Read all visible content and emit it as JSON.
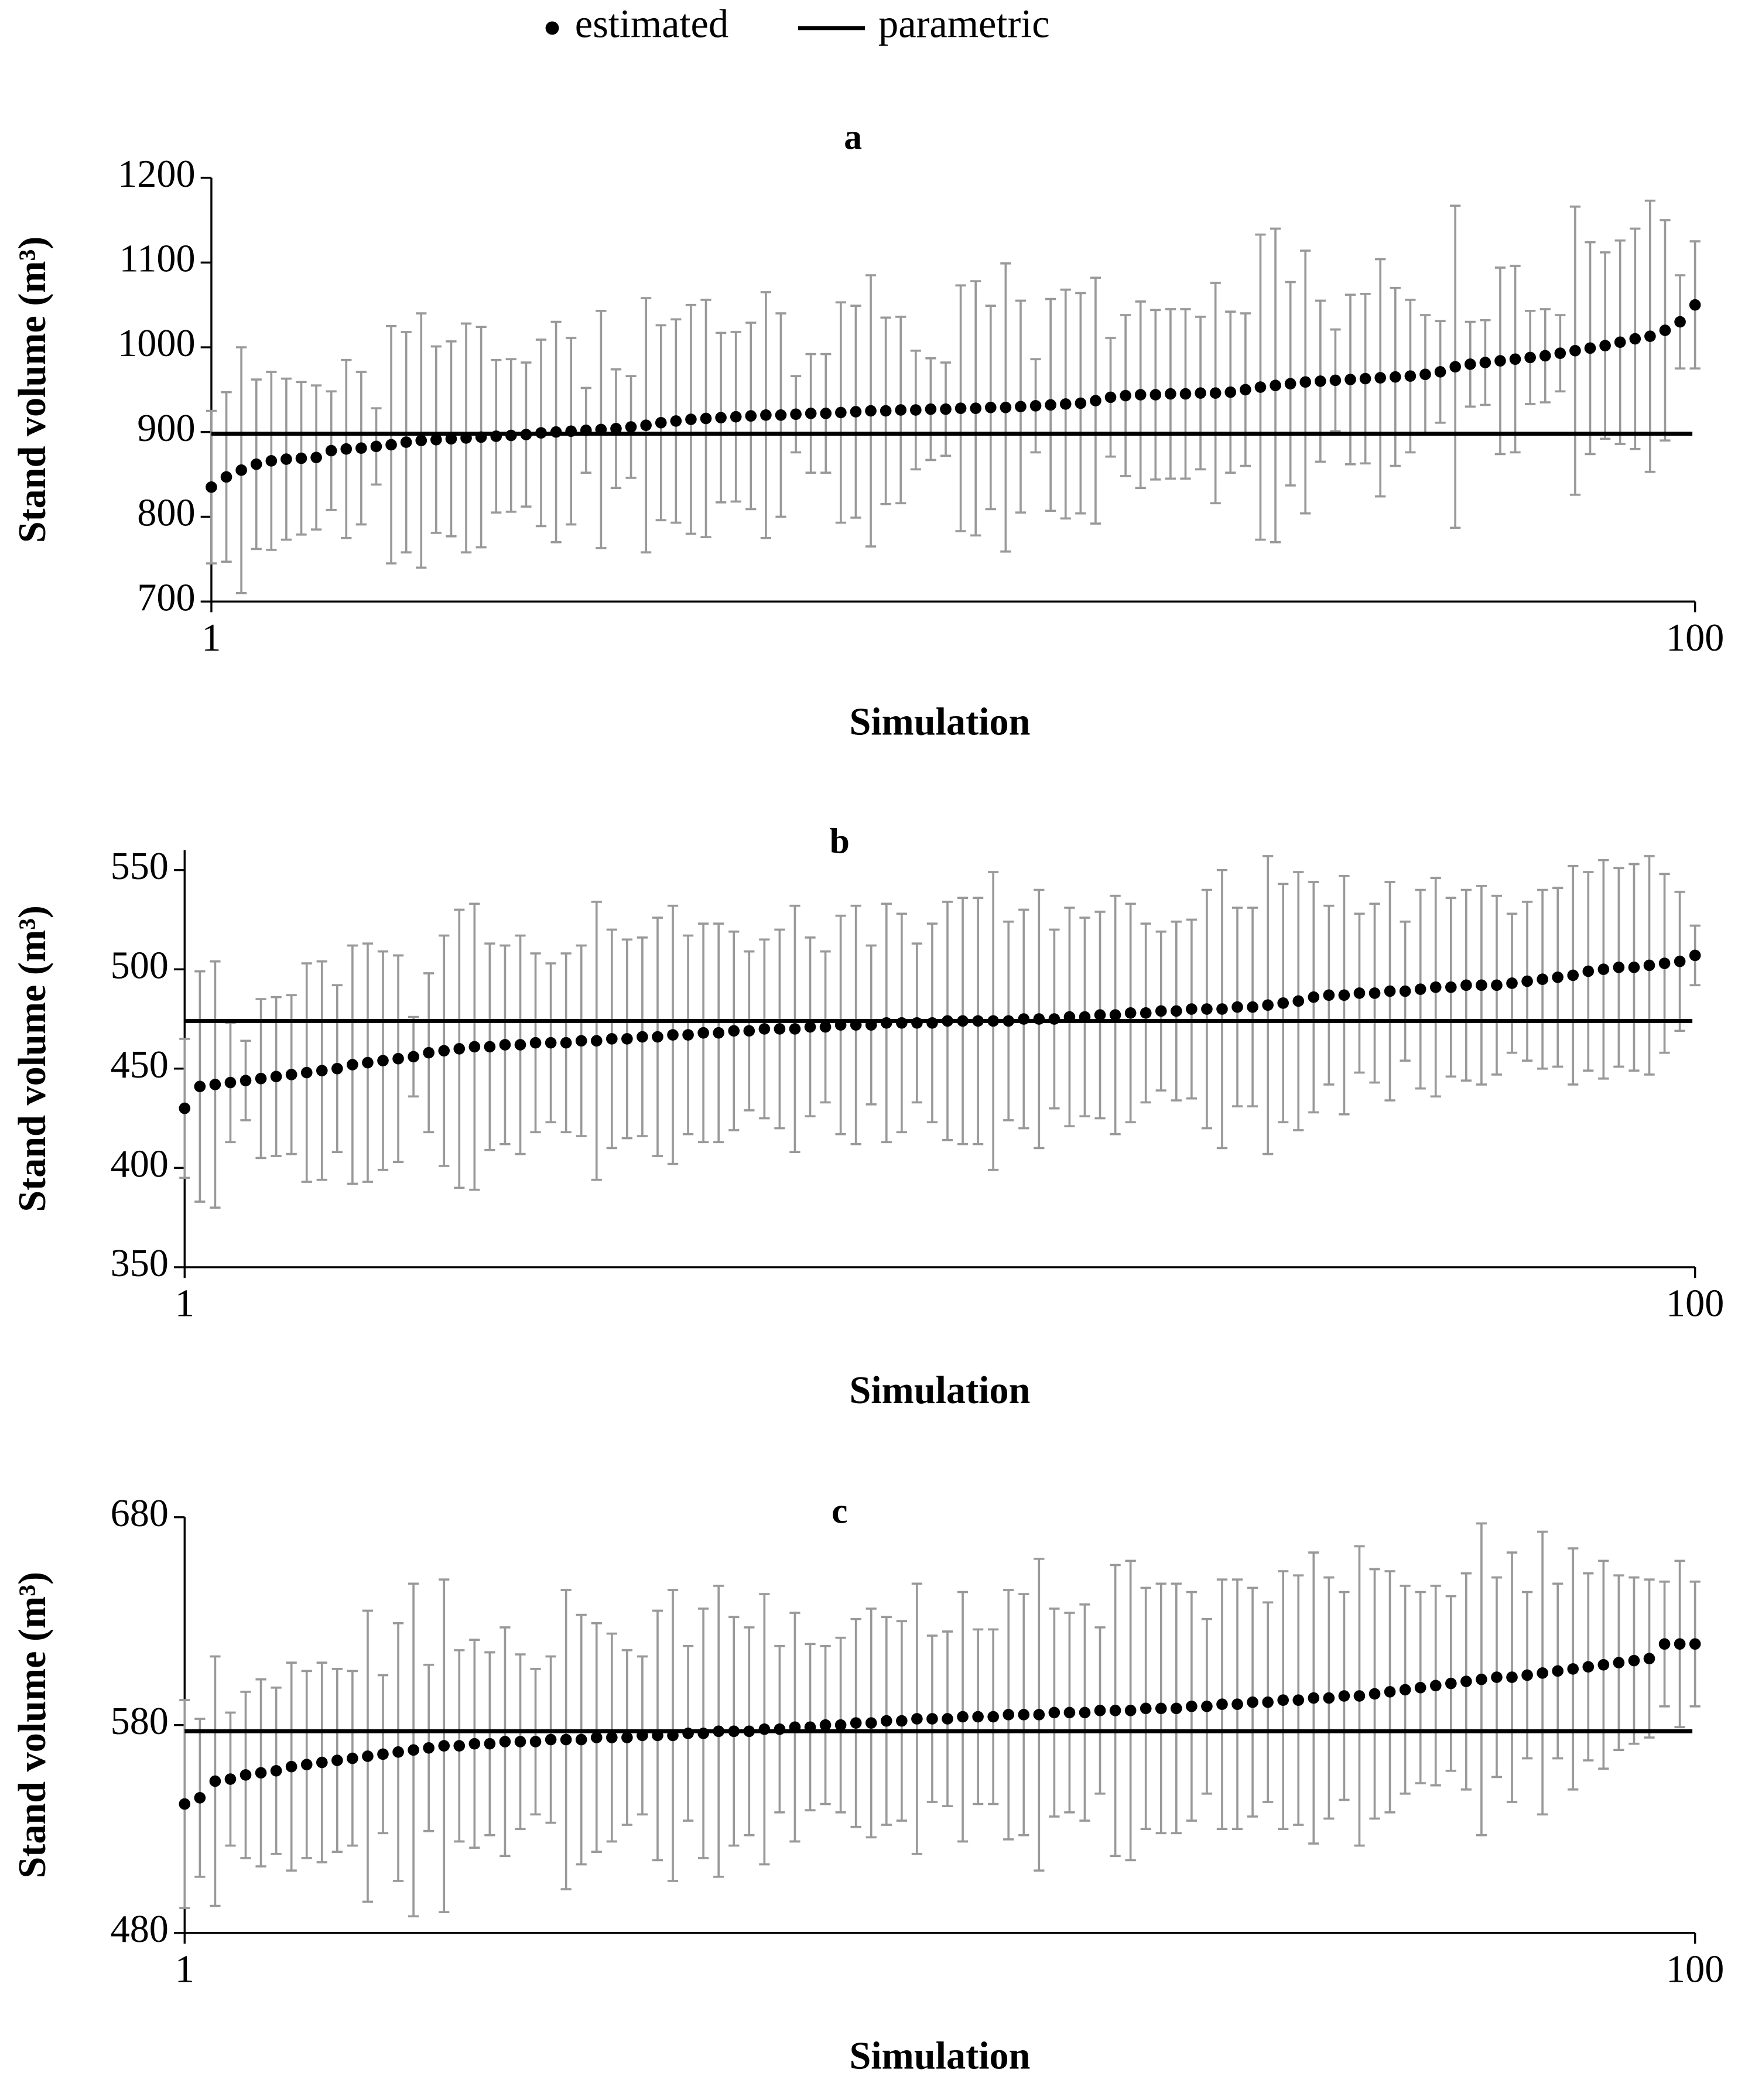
{
  "chart_data": [
    {
      "type": "scatter",
      "title": "a",
      "xlabel": "Simulation",
      "ylabel": "Stand volume (m³)",
      "x": [
        1,
        2,
        3,
        4,
        5,
        6,
        7,
        8,
        9,
        10,
        11,
        12,
        13,
        14,
        15,
        16,
        17,
        18,
        19,
        20,
        21,
        22,
        23,
        24,
        25,
        26,
        27,
        28,
        29,
        30,
        31,
        32,
        33,
        34,
        35,
        36,
        37,
        38,
        39,
        40,
        41,
        42,
        43,
        44,
        45,
        46,
        47,
        48,
        49,
        50,
        51,
        52,
        53,
        54,
        55,
        56,
        57,
        58,
        59,
        60,
        61,
        62,
        63,
        64,
        65,
        66,
        67,
        68,
        69,
        70,
        71,
        72,
        73,
        74,
        75,
        76,
        77,
        78,
        79,
        80,
        81,
        82,
        83,
        84,
        85,
        86,
        87,
        88,
        89,
        90,
        91,
        92,
        93,
        94,
        95,
        96,
        97,
        98,
        99,
        100
      ],
      "xlim": [
        1,
        100
      ],
      "xticks": [
        1,
        100
      ],
      "ylim": [
        700,
        1200
      ],
      "yticks": [
        700,
        800,
        900,
        1000,
        1100,
        1200
      ],
      "series": [
        {
          "name": "estimated",
          "color": "#000000",
          "error_color": "#999999",
          "values": [
            835,
            847,
            855,
            862,
            866,
            868,
            869,
            870,
            878,
            880,
            881,
            883,
            885,
            888,
            890,
            891,
            892,
            893,
            894,
            895,
            896,
            897,
            899,
            900,
            901,
            902,
            903,
            904,
            906,
            908,
            911,
            913,
            915,
            916,
            917,
            918,
            919,
            920,
            920,
            921,
            922,
            922,
            923,
            924,
            925,
            925,
            926,
            926,
            927,
            927,
            928,
            928,
            929,
            929,
            930,
            931,
            932,
            933,
            934,
            937,
            941,
            943,
            944,
            944,
            945,
            945,
            946,
            946,
            947,
            950,
            953,
            955,
            957,
            959,
            960,
            961,
            962,
            963,
            964,
            965,
            966,
            968,
            971,
            977,
            980,
            982,
            984,
            986,
            988,
            990,
            993,
            996,
            999,
            1002,
            1006,
            1010,
            1013,
            1020,
            1030,
            1050
          ],
          "errors": [
            90,
            100,
            145,
            100,
            105,
            95,
            90,
            85,
            70,
            105,
            90,
            45,
            140,
            130,
            150,
            110,
            115,
            135,
            130,
            90,
            90,
            85,
            110,
            130,
            110,
            50,
            140,
            70,
            60,
            150,
            115,
            120,
            135,
            140,
            100,
            100,
            110,
            145,
            120,
            45,
            70,
            70,
            130,
            125,
            160,
            110,
            110,
            70,
            60,
            55,
            145,
            150,
            120,
            170,
            125,
            55,
            125,
            135,
            130,
            145,
            70,
            95,
            110,
            100,
            100,
            100,
            90,
            130,
            95,
            90,
            180,
            185,
            120,
            155,
            95,
            60,
            100,
            100,
            140,
            105,
            90,
            70,
            60,
            190,
            50,
            50,
            110,
            110,
            55,
            55,
            45,
            170,
            125,
            110,
            120,
            130,
            160,
            130,
            55,
            75
          ]
        },
        {
          "name": "parametric",
          "color": "#000000",
          "value": 898
        }
      ]
    },
    {
      "type": "scatter",
      "title": "b",
      "xlabel": "Simulation",
      "ylabel": "Stand volume (m³)",
      "x": [
        1,
        2,
        3,
        4,
        5,
        6,
        7,
        8,
        9,
        10,
        11,
        12,
        13,
        14,
        15,
        16,
        17,
        18,
        19,
        20,
        21,
        22,
        23,
        24,
        25,
        26,
        27,
        28,
        29,
        30,
        31,
        32,
        33,
        34,
        35,
        36,
        37,
        38,
        39,
        40,
        41,
        42,
        43,
        44,
        45,
        46,
        47,
        48,
        49,
        50,
        51,
        52,
        53,
        54,
        55,
        56,
        57,
        58,
        59,
        60,
        61,
        62,
        63,
        64,
        65,
        66,
        67,
        68,
        69,
        70,
        71,
        72,
        73,
        74,
        75,
        76,
        77,
        78,
        79,
        80,
        81,
        82,
        83,
        84,
        85,
        86,
        87,
        88,
        89,
        90,
        91,
        92,
        93,
        94,
        95,
        96,
        97,
        98,
        99,
        100
      ],
      "xlim": [
        1,
        100
      ],
      "xticks": [
        1,
        100
      ],
      "ylim": [
        350,
        560
      ],
      "yticks": [
        350,
        400,
        450,
        500,
        550
      ],
      "series": [
        {
          "name": "estimated",
          "color": "#000000",
          "error_color": "#999999",
          "values": [
            430,
            441,
            442,
            443,
            444,
            445,
            446,
            447,
            448,
            449,
            450,
            452,
            453,
            454,
            455,
            456,
            458,
            459,
            460,
            461,
            461,
            462,
            462,
            463,
            463,
            463,
            464,
            464,
            465,
            465,
            466,
            466,
            467,
            467,
            468,
            468,
            469,
            469,
            470,
            470,
            470,
            471,
            471,
            472,
            472,
            472,
            473,
            473,
            473,
            473,
            474,
            474,
            474,
            474,
            474,
            475,
            475,
            475,
            476,
            476,
            477,
            477,
            478,
            478,
            479,
            479,
            480,
            480,
            480,
            481,
            481,
            482,
            483,
            484,
            486,
            487,
            487,
            488,
            488,
            489,
            489,
            490,
            491,
            491,
            492,
            492,
            492,
            493,
            494,
            495,
            496,
            497,
            499,
            500,
            501,
            501,
            502,
            503,
            504,
            507
          ],
          "errors": [
            35,
            58,
            62,
            30,
            20,
            40,
            40,
            40,
            55,
            55,
            42,
            60,
            60,
            55,
            52,
            20,
            40,
            58,
            70,
            72,
            52,
            50,
            55,
            45,
            40,
            45,
            48,
            70,
            55,
            50,
            50,
            60,
            65,
            50,
            55,
            55,
            50,
            40,
            45,
            50,
            62,
            45,
            38,
            55,
            60,
            40,
            60,
            55,
            40,
            50,
            60,
            62,
            62,
            75,
            50,
            55,
            65,
            45,
            55,
            50,
            52,
            60,
            55,
            45,
            40,
            45,
            45,
            60,
            70,
            50,
            50,
            75,
            60,
            65,
            58,
            45,
            60,
            40,
            45,
            55,
            35,
            50,
            55,
            45,
            48,
            50,
            45,
            35,
            40,
            45,
            45,
            55,
            50,
            55,
            50,
            52,
            55,
            45,
            35,
            15
          ]
        },
        {
          "name": "parametric",
          "color": "#000000",
          "value": 474
        }
      ]
    },
    {
      "type": "scatter",
      "title": "c",
      "xlabel": "Simulation",
      "ylabel": "Stand volume (m³)",
      "x": [
        1,
        2,
        3,
        4,
        5,
        6,
        7,
        8,
        9,
        10,
        11,
        12,
        13,
        14,
        15,
        16,
        17,
        18,
        19,
        20,
        21,
        22,
        23,
        24,
        25,
        26,
        27,
        28,
        29,
        30,
        31,
        32,
        33,
        34,
        35,
        36,
        37,
        38,
        39,
        40,
        41,
        42,
        43,
        44,
        45,
        46,
        47,
        48,
        49,
        50,
        51,
        52,
        53,
        54,
        55,
        56,
        57,
        58,
        59,
        60,
        61,
        62,
        63,
        64,
        65,
        66,
        67,
        68,
        69,
        70,
        71,
        72,
        73,
        74,
        75,
        76,
        77,
        78,
        79,
        80,
        81,
        82,
        83,
        84,
        85,
        86,
        87,
        88,
        89,
        90,
        91,
        92,
        93,
        94,
        95,
        96,
        97,
        98,
        99,
        100
      ],
      "xlim": [
        1,
        100
      ],
      "xticks": [
        1,
        100
      ],
      "ylim": [
        480,
        680
      ],
      "yticks": [
        480,
        580,
        680
      ],
      "series": [
        {
          "name": "estimated",
          "color": "#000000",
          "error_color": "#999999",
          "values": [
            542,
            545,
            553,
            554,
            556,
            557,
            558,
            560,
            561,
            562,
            563,
            564,
            565,
            566,
            567,
            568,
            569,
            570,
            570,
            571,
            571,
            572,
            572,
            572,
            573,
            573,
            573,
            574,
            574,
            574,
            575,
            575,
            575,
            576,
            576,
            577,
            577,
            577,
            578,
            578,
            579,
            579,
            580,
            580,
            581,
            581,
            582,
            582,
            583,
            583,
            583,
            584,
            584,
            584,
            585,
            585,
            585,
            586,
            586,
            586,
            587,
            587,
            587,
            588,
            588,
            588,
            589,
            589,
            590,
            590,
            591,
            591,
            592,
            592,
            593,
            593,
            594,
            594,
            595,
            596,
            597,
            598,
            599,
            600,
            601,
            602,
            603,
            603,
            604,
            605,
            606,
            607,
            608,
            609,
            610,
            611,
            612,
            619,
            619,
            619
          ],
          "errors": [
            50,
            38,
            60,
            32,
            40,
            45,
            40,
            50,
            45,
            48,
            44,
            42,
            70,
            38,
            62,
            80,
            40,
            80,
            46,
            50,
            44,
            55,
            42,
            35,
            40,
            72,
            60,
            55,
            50,
            42,
            38,
            60,
            70,
            42,
            60,
            70,
            55,
            50,
            65,
            40,
            55,
            40,
            38,
            42,
            50,
            55,
            50,
            48,
            65,
            40,
            42,
            60,
            42,
            42,
            60,
            58,
            75,
            50,
            48,
            52,
            40,
            70,
            72,
            58,
            60,
            60,
            55,
            42,
            60,
            60,
            55,
            48,
            62,
            60,
            70,
            58,
            50,
            72,
            60,
            58,
            50,
            46,
            48,
            42,
            52,
            75,
            48,
            60,
            40,
            68,
            42,
            58,
            45,
            50,
            42,
            40,
            38,
            30,
            40,
            30
          ]
        },
        {
          "name": "parametric",
          "color": "#000000",
          "value": 577
        }
      ]
    }
  ]
}
